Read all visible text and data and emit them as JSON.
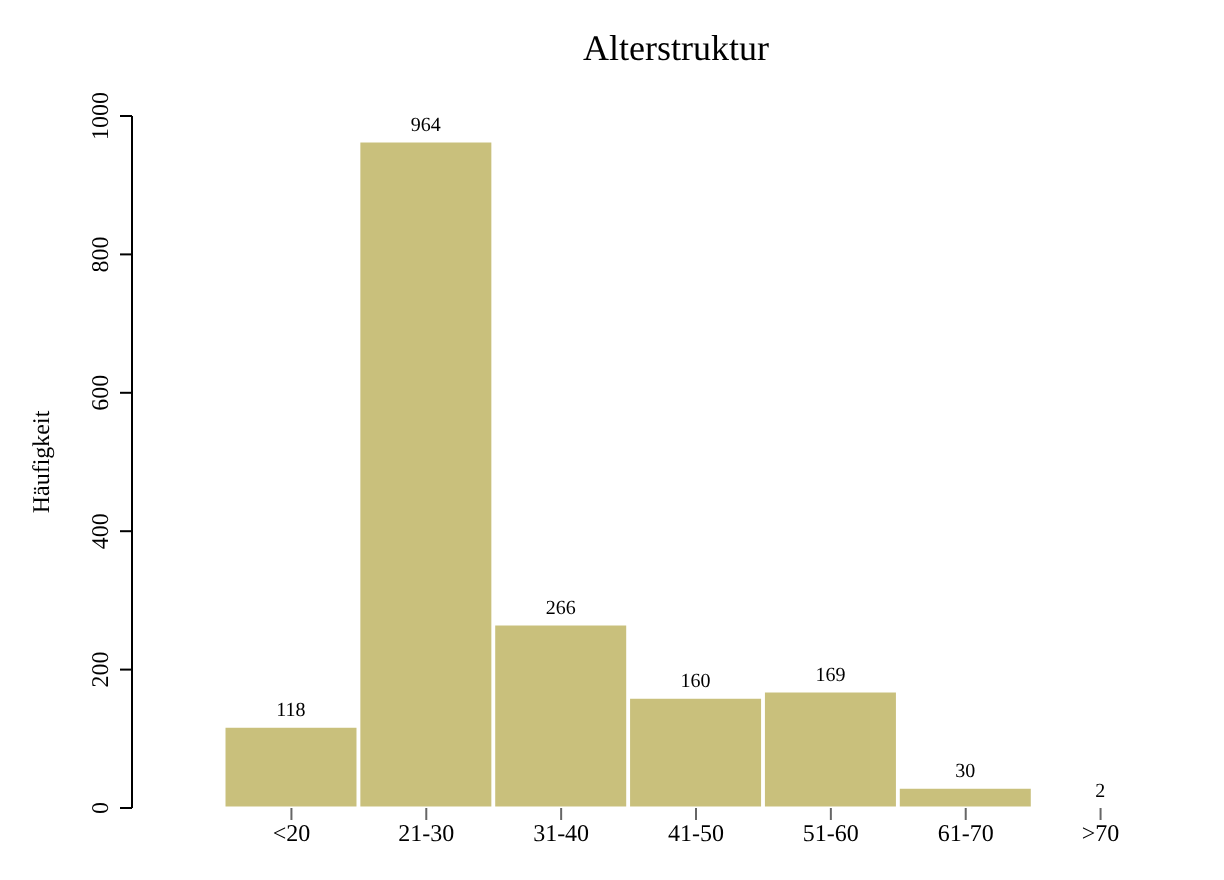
{
  "chart_data": {
    "type": "bar",
    "title": "Alterstruktur",
    "ylabel": "Häufigkeit",
    "categories": [
      "<20",
      "21-30",
      "31-40",
      "41-50",
      "51-60",
      "61-70",
      ">70"
    ],
    "values": [
      118,
      964,
      266,
      160,
      169,
      30,
      2
    ],
    "color": "#c9c07c",
    "ylim": [
      0,
      1000
    ],
    "yticks": [
      0,
      200,
      400,
      600,
      800,
      1000
    ],
    "data_labels": true,
    "grid": false
  }
}
